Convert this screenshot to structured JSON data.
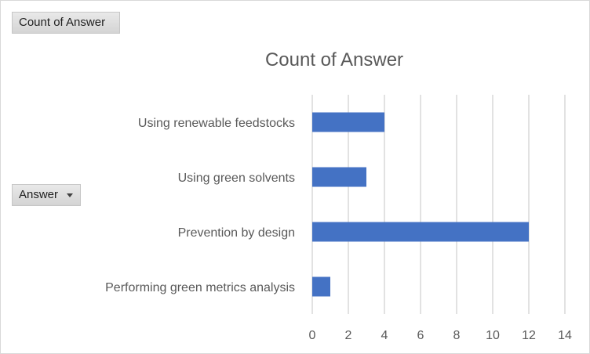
{
  "pivot": {
    "values_field": "Count of Answer",
    "row_field": "Answer"
  },
  "chart_data": {
    "type": "bar",
    "orientation": "horizontal",
    "title": "Count of Answer",
    "categories": [
      "Using renewable feedstocks",
      "Using green solvents",
      "Prevention by design",
      "Performing green metrics analysis"
    ],
    "values": [
      4,
      3,
      12,
      1
    ],
    "xlim": [
      0,
      14
    ],
    "xticks": [
      0,
      2,
      4,
      6,
      8,
      10,
      12,
      14
    ],
    "grid": "vertical",
    "bar_color": "#4472c4",
    "grid_color": "#d9d9d9"
  }
}
